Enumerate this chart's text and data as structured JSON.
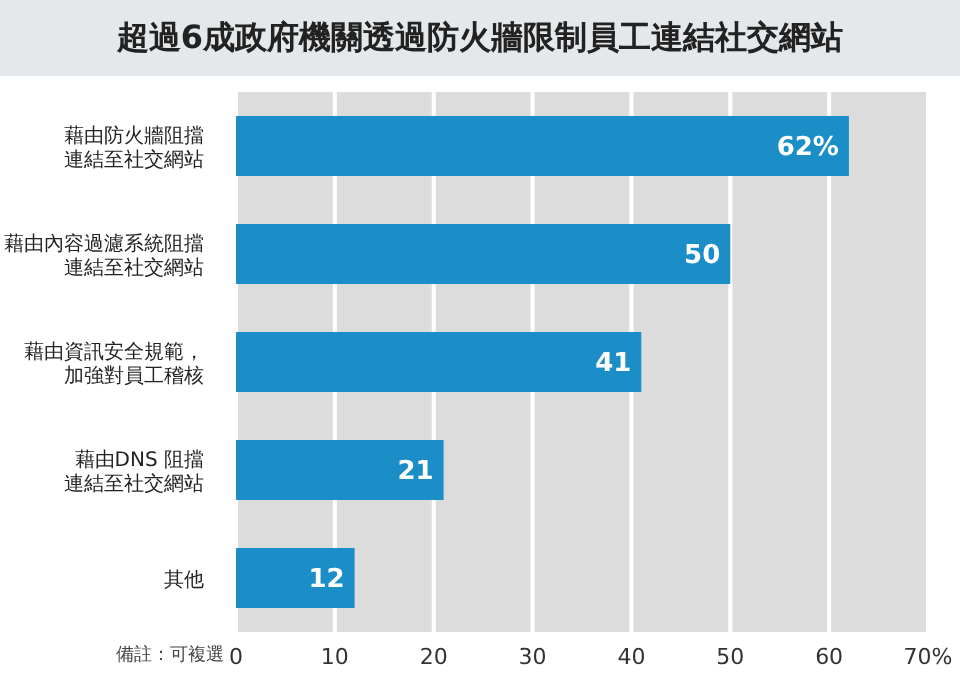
{
  "chart_data": {
    "type": "bar",
    "orientation": "horizontal",
    "title": "超過6成政府機關透過防火牆限制員工連結社交網站",
    "categories": [
      "藉由防火牆阻擋連結至社交網站",
      "藉由內容過濾系統阻擋連結至社交網站",
      "藉由資訊安全規範，加強對員工稽核",
      "藉由DNS 阻擋連結至社交網站",
      "其他"
    ],
    "values": [
      62,
      50,
      41,
      21,
      12
    ],
    "value_labels": [
      "62%",
      "50",
      "41",
      "21",
      "12"
    ],
    "color": "#1b8ec8",
    "xlim": [
      0,
      70
    ],
    "xticks": [
      0,
      10,
      20,
      30,
      40,
      50,
      60,
      {
        "value": 70,
        "label": "70%"
      }
    ],
    "grid": "x",
    "annotations": [
      "備註：可複選"
    ]
  }
}
